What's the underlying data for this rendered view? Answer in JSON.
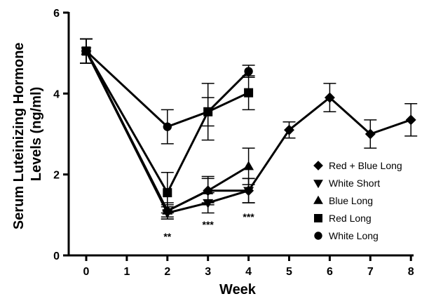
{
  "chart_data": {
    "type": "line",
    "xlabel": "Week",
    "ylabel": "Serum Luteinizing Hormone Levels (ng/ml)",
    "ylabel_lines": [
      "Serum Luteinizing Hormone",
      "Levels (ng/ml)"
    ],
    "xlim": [
      0,
      8
    ],
    "ylim": [
      0,
      6
    ],
    "x_ticks": [
      0,
      1,
      2,
      3,
      4,
      5,
      6,
      7,
      8
    ],
    "y_ticks": [
      0,
      2,
      4,
      6
    ],
    "x_tick_labels": [
      "0",
      "1",
      "2",
      "3",
      "4",
      "5",
      "6",
      "7",
      "8"
    ],
    "y_tick_labels": [
      "0",
      "2",
      "4",
      "6"
    ],
    "legend_position": "right",
    "grid": false,
    "series": [
      {
        "name": "Red + Blue Long",
        "marker": "diamond",
        "points": [
          {
            "x": 0,
            "y": 5.05,
            "err": 0.3
          },
          {
            "x": 2,
            "y": 1.1,
            "err": 0.15
          },
          {
            "x": 3,
            "y": 1.6,
            "err": 0.3
          },
          {
            "x": 4,
            "y": 1.6,
            "err": 0.3
          },
          {
            "x": 5,
            "y": 3.1,
            "err": 0.2
          },
          {
            "x": 6,
            "y": 3.9,
            "err": 0.35
          },
          {
            "x": 7,
            "y": 3.0,
            "err": 0.35
          },
          {
            "x": 8,
            "y": 3.35,
            "err": 0.4
          }
        ]
      },
      {
        "name": "White Short",
        "marker": "triangle-down",
        "points": [
          {
            "x": 0,
            "y": 5.05,
            "err": 0.3
          },
          {
            "x": 2,
            "y": 1.05,
            "err": 0.15
          },
          {
            "x": 3,
            "y": 1.3,
            "err": 0.25
          },
          {
            "x": 4,
            "y": 1.6,
            "err": 0.3
          }
        ]
      },
      {
        "name": "Blue Long",
        "marker": "triangle-up",
        "points": [
          {
            "x": 0,
            "y": 5.05,
            "err": 0.3
          },
          {
            "x": 2,
            "y": 1.1,
            "err": 0.2
          },
          {
            "x": 3,
            "y": 1.6,
            "err": 0.35
          },
          {
            "x": 4,
            "y": 2.2,
            "err": 0.45
          }
        ]
      },
      {
        "name": "Red Long",
        "marker": "square",
        "points": [
          {
            "x": 0,
            "y": 5.05,
            "err": 0.3
          },
          {
            "x": 2,
            "y": 1.55,
            "err": 0.5
          },
          {
            "x": 3,
            "y": 3.55,
            "err": 0.35
          },
          {
            "x": 4,
            "y": 4.02,
            "err": 0.42
          }
        ]
      },
      {
        "name": "White Long",
        "marker": "circle",
        "points": [
          {
            "x": 0,
            "y": 5.05,
            "err": 0.3
          },
          {
            "x": 2,
            "y": 3.18,
            "err": 0.42
          },
          {
            "x": 3,
            "y": 3.55,
            "err": 0.7
          },
          {
            "x": 4,
            "y": 4.55,
            "err": 0.15
          }
        ]
      }
    ],
    "annotations": [
      {
        "x": 2,
        "text": "**"
      },
      {
        "x": 3,
        "text": "***"
      },
      {
        "x": 4,
        "text": "***"
      }
    ]
  }
}
